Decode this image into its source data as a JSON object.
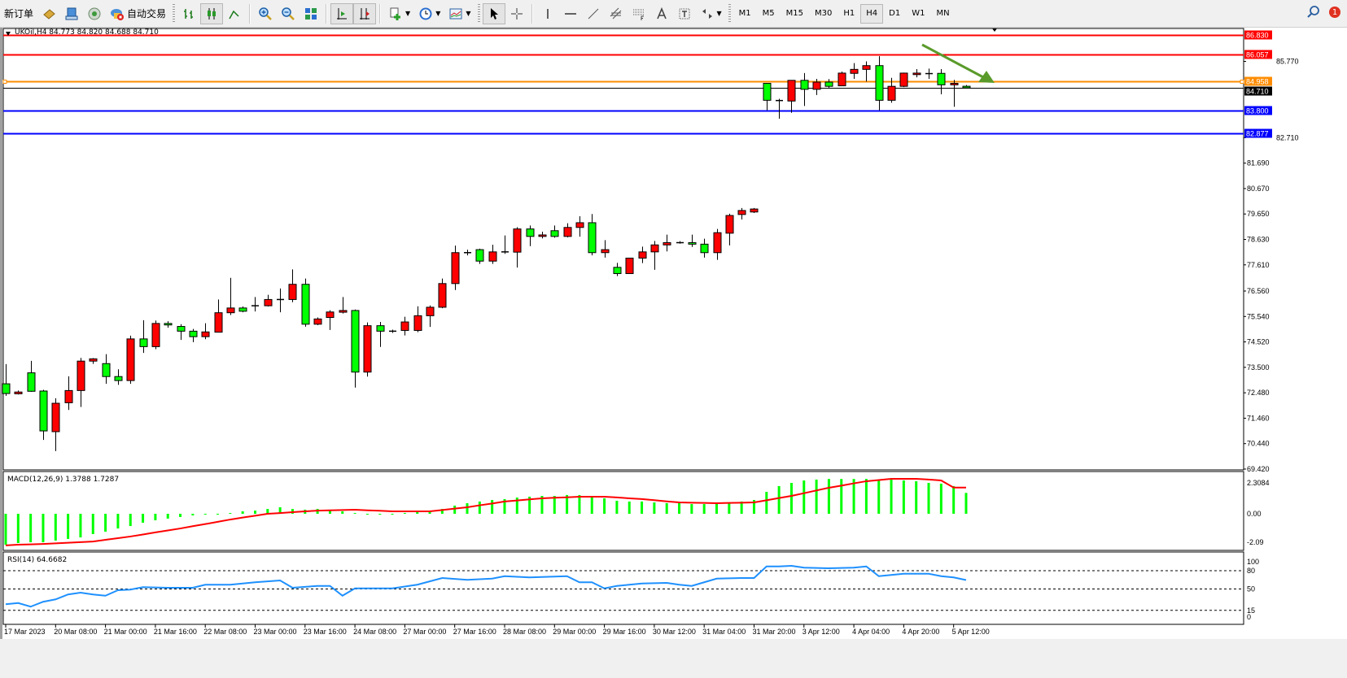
{
  "toolbar": {
    "new_order_label": "新订单",
    "auto_trading_label": "自动交易",
    "timeframes": [
      "M1",
      "M5",
      "M15",
      "M30",
      "H1",
      "H4",
      "D1",
      "W1",
      "MN"
    ],
    "active_timeframe": "H4",
    "notification_count": "1"
  },
  "chart": {
    "header": "UKOil,H4  84.773 84.820 84.688 84.710",
    "symbol": "UKOil",
    "timeframe": "H4",
    "ohlc": {
      "open": 84.773,
      "high": 84.82,
      "low": 84.688,
      "close": 84.71
    },
    "colors": {
      "bull": "#ff0000",
      "bear": "#00ff00",
      "outline": "#000000"
    },
    "price_axis": {
      "min": 69.42,
      "max": 86.83,
      "labels": [
        "85.770",
        "82.710",
        "81.690",
        "80.670",
        "79.650",
        "78.630",
        "77.610",
        "76.560",
        "75.540",
        "74.520",
        "73.500",
        "72.480",
        "71.460",
        "70.440",
        "69.420"
      ]
    },
    "levels": [
      {
        "price": "86.830",
        "color": "#ff0000"
      },
      {
        "price": "86.057",
        "color": "#ff0000"
      },
      {
        "price": "84.958",
        "color": "#ff8c00"
      },
      {
        "price": "84.710",
        "color": "#000000"
      },
      {
        "price": "83.800",
        "color": "#0000ff"
      },
      {
        "price": "82.877",
        "color": "#0000ff"
      }
    ],
    "candles": [
      [
        72.84,
        73.63,
        72.36,
        72.45
      ],
      [
        72.44,
        72.57,
        72.41,
        72.51
      ],
      [
        73.28,
        73.76,
        72.52,
        72.54
      ],
      [
        72.55,
        72.6,
        70.59,
        70.95
      ],
      [
        70.92,
        72.26,
        70.14,
        72.06
      ],
      [
        72.08,
        73.14,
        71.79,
        72.57
      ],
      [
        72.57,
        73.88,
        71.91,
        73.75
      ],
      [
        73.75,
        73.87,
        73.64,
        73.84
      ],
      [
        73.65,
        74.03,
        72.84,
        73.13
      ],
      [
        73.13,
        73.42,
        72.8,
        72.97
      ],
      [
        72.97,
        74.77,
        72.84,
        74.64
      ],
      [
        74.64,
        75.39,
        74.08,
        74.33
      ],
      [
        74.33,
        75.38,
        74.23,
        75.26
      ],
      [
        75.26,
        75.35,
        75.09,
        75.2
      ],
      [
        75.14,
        75.23,
        74.6,
        74.95
      ],
      [
        74.95,
        75.04,
        74.51,
        74.73
      ],
      [
        74.73,
        75.27,
        74.63,
        74.92
      ],
      [
        74.91,
        76.22,
        74.91,
        75.69
      ],
      [
        75.69,
        77.09,
        75.6,
        75.88
      ],
      [
        75.88,
        75.94,
        75.71,
        75.75
      ],
      [
        75.97,
        76.32,
        75.74,
        75.97
      ],
      [
        75.97,
        76.41,
        75.94,
        76.22
      ],
      [
        76.18,
        76.66,
        75.71,
        76.22
      ],
      [
        76.22,
        77.43,
        76.11,
        76.83
      ],
      [
        76.83,
        77.06,
        75.13,
        75.23
      ],
      [
        75.23,
        75.5,
        75.19,
        75.44
      ],
      [
        75.5,
        75.79,
        75.0,
        75.72
      ],
      [
        75.71,
        76.32,
        75.66,
        75.78
      ],
      [
        75.78,
        75.82,
        72.69,
        73.31
      ],
      [
        73.31,
        75.3,
        73.13,
        75.17
      ],
      [
        75.17,
        75.32,
        74.32,
        74.95
      ],
      [
        74.95,
        75.01,
        74.88,
        74.95
      ],
      [
        74.98,
        75.53,
        74.78,
        75.32
      ],
      [
        74.98,
        75.95,
        74.91,
        75.57
      ],
      [
        75.57,
        75.98,
        75.12,
        75.91
      ],
      [
        75.91,
        77.06,
        75.87,
        76.86
      ],
      [
        76.86,
        78.38,
        76.6,
        78.1
      ],
      [
        78.1,
        78.22,
        77.99,
        78.1
      ],
      [
        78.22,
        78.26,
        77.65,
        77.76
      ],
      [
        77.76,
        78.42,
        77.65,
        78.13
      ],
      [
        78.13,
        78.79,
        78.05,
        78.13
      ],
      [
        78.12,
        79.12,
        77.5,
        79.05
      ],
      [
        79.05,
        79.19,
        78.36,
        78.75
      ],
      [
        78.75,
        78.94,
        78.67,
        78.81
      ],
      [
        78.98,
        79.19,
        78.7,
        78.75
      ],
      [
        78.75,
        79.28,
        78.71,
        79.11
      ],
      [
        79.11,
        79.56,
        78.74,
        79.3
      ],
      [
        79.3,
        79.65,
        77.99,
        78.1
      ],
      [
        78.1,
        78.6,
        77.9,
        78.22
      ],
      [
        77.51,
        77.69,
        77.16,
        77.26
      ],
      [
        77.26,
        77.88,
        77.26,
        77.88
      ],
      [
        77.88,
        78.34,
        77.68,
        78.13
      ],
      [
        78.13,
        78.57,
        77.41,
        78.41
      ],
      [
        78.41,
        78.82,
        78.15,
        78.5
      ],
      [
        78.5,
        78.56,
        78.46,
        78.5
      ],
      [
        78.5,
        78.82,
        78.33,
        78.44
      ],
      [
        78.44,
        78.66,
        77.9,
        78.1
      ],
      [
        78.1,
        79.05,
        77.81,
        78.9
      ],
      [
        78.88,
        79.66,
        78.39,
        79.59
      ],
      [
        79.63,
        79.89,
        79.43,
        79.79
      ],
      [
        79.73,
        79.89,
        79.69,
        79.85
      ],
      [
        84.89,
        84.89,
        83.81,
        84.21
      ],
      [
        84.2,
        84.27,
        83.47,
        84.2
      ],
      [
        84.18,
        85.01,
        83.71,
        85.01
      ],
      [
        85.01,
        85.3,
        83.98,
        84.65
      ],
      [
        84.65,
        85.07,
        84.42,
        84.94
      ],
      [
        84.94,
        85.06,
        84.69,
        84.77
      ],
      [
        84.79,
        85.36,
        84.79,
        85.3
      ],
      [
        85.29,
        85.7,
        85.07,
        85.45
      ],
      [
        85.45,
        85.77,
        84.96,
        85.6
      ],
      [
        85.6,
        85.98,
        83.81,
        84.21
      ],
      [
        84.21,
        85.11,
        84.11,
        84.77
      ],
      [
        84.77,
        85.32,
        84.74,
        85.3
      ],
      [
        85.24,
        85.46,
        85.13,
        85.3
      ],
      [
        85.28,
        85.48,
        85.07,
        85.28
      ],
      [
        85.29,
        85.46,
        84.45,
        84.83
      ],
      [
        84.83,
        85.03,
        83.95,
        84.89
      ],
      [
        84.773,
        84.82,
        84.688,
        84.71
      ]
    ],
    "time_labels": [
      "17 Mar 2023",
      "20 Mar 08:00",
      "21 Mar 00:00",
      "21 Mar 16:00",
      "22 Mar 08:00",
      "23 Mar 00:00",
      "23 Mar 16:00",
      "24 Mar 08:00",
      "27 Mar 00:00",
      "27 Mar 16:00",
      "28 Mar 08:00",
      "29 Mar 00:00",
      "29 Mar 16:00",
      "30 Mar 12:00",
      "31 Mar 04:00",
      "31 Mar 20:00",
      "3 Apr 12:00",
      "4 Apr 04:00",
      "4 Apr 20:00",
      "5 Apr 12:00"
    ]
  },
  "macd": {
    "label": "MACD(12,26,9) 1.3788 1.7287",
    "axis_labels": [
      "2.3084",
      "0.00",
      "-2.09"
    ],
    "range": [
      -2.09,
      2.3084
    ],
    "hist_color": "#00ff00",
    "signal_color": "#ff0000",
    "main": [
      -2.04,
      -1.93,
      -1.88,
      -1.88,
      -1.77,
      -1.66,
      -1.56,
      -1.34,
      -1.18,
      -0.97,
      -0.81,
      -0.59,
      -0.43,
      -0.32,
      -0.21,
      -0.11,
      -0.05,
      0.0,
      0.05,
      0.16,
      0.21,
      0.32,
      0.43,
      0.32,
      0.27,
      0.32,
      0.27,
      0.16,
      0.05,
      0.0,
      0.0,
      0.0,
      0.05,
      0.11,
      0.21,
      0.32,
      0.54,
      0.7,
      0.81,
      0.91,
      0.97,
      1.07,
      1.13,
      1.18,
      1.18,
      1.24,
      1.24,
      1.13,
      1.02,
      0.86,
      0.81,
      0.81,
      0.75,
      0.7,
      0.7,
      0.64,
      0.64,
      0.7,
      0.75,
      0.81,
      0.91,
      1.45,
      1.83,
      2.04,
      2.2,
      2.26,
      2.3,
      2.3,
      2.3,
      2.3,
      2.25,
      2.25,
      2.2,
      2.15,
      2.04,
      1.99,
      1.83,
      1.38
    ],
    "signal": [
      -2.09,
      -2.04,
      -2.02,
      -1.99,
      -1.95,
      -1.91,
      -1.87,
      -1.83,
      -1.72,
      -1.61,
      -1.5,
      -1.37,
      -1.23,
      -1.1,
      -0.97,
      -0.82,
      -0.68,
      -0.53,
      -0.38,
      -0.25,
      -0.13,
      0.0,
      0.05,
      0.11,
      0.16,
      0.21,
      0.23,
      0.25,
      0.27,
      0.23,
      0.2,
      0.16,
      0.16,
      0.16,
      0.16,
      0.25,
      0.34,
      0.43,
      0.56,
      0.68,
      0.81,
      0.88,
      0.95,
      1.02,
      1.06,
      1.09,
      1.13,
      1.13,
      1.13,
      1.08,
      1.02,
      0.97,
      0.9,
      0.82,
      0.75,
      0.73,
      0.72,
      0.7,
      0.72,
      0.73,
      0.75,
      0.89,
      1.04,
      1.18,
      1.36,
      1.54,
      1.72,
      1.86,
      2.01,
      2.15,
      2.23,
      2.31,
      2.31,
      2.31,
      2.26,
      2.2,
      1.73,
      1.73
    ]
  },
  "rsi": {
    "label": "RSI(14) 64.6682",
    "axis_labels": [
      "100",
      "80",
      "50",
      "15",
      "0"
    ],
    "levels": [
      80,
      50,
      15
    ],
    "color": "#1e90ff",
    "values": [
      25,
      27,
      21,
      29,
      33,
      41,
      44,
      41,
      39,
      48,
      49,
      53,
      52.5,
      52,
      52,
      52,
      57,
      57,
      57,
      59,
      61,
      62.5,
      64,
      52,
      53.5,
      55,
      55,
      39,
      51,
      51,
      51,
      51,
      54,
      57,
      62.5,
      68,
      66.5,
      65,
      66,
      67,
      71,
      70,
      69,
      69.7,
      70.3,
      71,
      61,
      61,
      51,
      55,
      57,
      59,
      59.5,
      60,
      57,
      55,
      61,
      67,
      67.5,
      68,
      68,
      87,
      87,
      88,
      85,
      84.5,
      84,
      84.5,
      85,
      87,
      71,
      73,
      75,
      75,
      75,
      71,
      69,
      64.67
    ]
  }
}
